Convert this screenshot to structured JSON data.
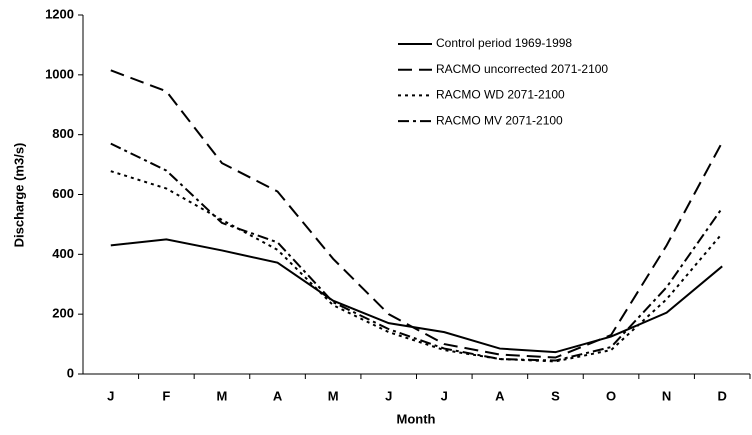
{
  "chart_data": {
    "type": "line",
    "x_label": "Month",
    "y_label": "Discharge (m3/s)",
    "categories": [
      "J",
      "F",
      "M",
      "A",
      "M",
      "J",
      "J",
      "A",
      "S",
      "O",
      "N",
      "D"
    ],
    "series": [
      {
        "name": "Control period 1969-1998",
        "color": "#000000",
        "dash": "none",
        "values": [
          430,
          450,
          413,
          372,
          245,
          170,
          140,
          85,
          73,
          125,
          205,
          360
        ]
      },
      {
        "name": "RACMO uncorrected 2071-2100",
        "color": "#000000",
        "dash": "14,7",
        "values": [
          1015,
          945,
          705,
          610,
          385,
          200,
          100,
          65,
          55,
          130,
          430,
          775
        ]
      },
      {
        "name": "RACMO WD 2071-2100",
        "color": "#000000",
        "dash": "3,4",
        "values": [
          678,
          620,
          515,
          415,
          230,
          140,
          80,
          50,
          42,
          80,
          250,
          470
        ]
      },
      {
        "name": "RACMO MV 2071-2100",
        "color": "#000000",
        "dash": "11,4,3,4",
        "values": [
          770,
          680,
          505,
          440,
          240,
          150,
          85,
          50,
          45,
          90,
          290,
          555
        ]
      }
    ],
    "ylim": [
      0,
      1200
    ],
    "yticks": [
      0,
      200,
      400,
      600,
      800,
      1000,
      1200
    ],
    "grid": false,
    "legend": "top-right"
  }
}
